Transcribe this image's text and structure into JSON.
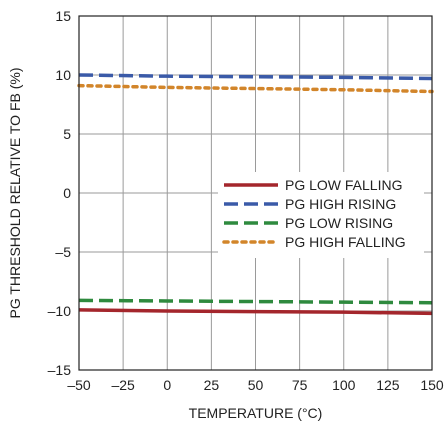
{
  "chart_data": {
    "type": "line",
    "xlabel": "TEMPERATURE (°C)",
    "ylabel": "PG THRESHOLD RELATIVE TO FB (%)",
    "xlim": [
      -50,
      150
    ],
    "ylim": [
      -15,
      15
    ],
    "x_ticks": [
      -50,
      -25,
      0,
      25,
      50,
      75,
      100,
      125,
      150
    ],
    "y_ticks": [
      -15,
      -10,
      -5,
      0,
      5,
      10,
      15
    ],
    "x_tick_labels": [
      "–50",
      "–25",
      "0",
      "25",
      "50",
      "75",
      "100",
      "125",
      "150"
    ],
    "y_tick_labels": [
      "–15",
      "–10",
      "–5",
      "0",
      "5",
      "10",
      "15"
    ],
    "grid": true,
    "legend_position": "center-right",
    "series": [
      {
        "name": "PG LOW FALLING",
        "color": "#a4262c",
        "style": "solid",
        "x": [
          -50,
          0,
          50,
          100,
          150
        ],
        "y": [
          -9.9,
          -10.0,
          -10.05,
          -10.1,
          -10.2
        ]
      },
      {
        "name": "PG HIGH RISING",
        "color": "#3a5aa8",
        "style": "dashed",
        "x": [
          -50,
          0,
          50,
          100,
          150
        ],
        "y": [
          10.0,
          9.9,
          9.85,
          9.8,
          9.7
        ]
      },
      {
        "name": "PG LOW RISING",
        "color": "#2e8a3e",
        "style": "dashed",
        "x": [
          -50,
          0,
          50,
          100,
          150
        ],
        "y": [
          -9.1,
          -9.15,
          -9.2,
          -9.25,
          -9.3
        ]
      },
      {
        "name": "PG HIGH FALLING",
        "color": "#d2852a",
        "style": "dotted",
        "x": [
          -50,
          0,
          50,
          100,
          150
        ],
        "y": [
          9.1,
          8.95,
          8.85,
          8.75,
          8.6
        ]
      }
    ]
  }
}
